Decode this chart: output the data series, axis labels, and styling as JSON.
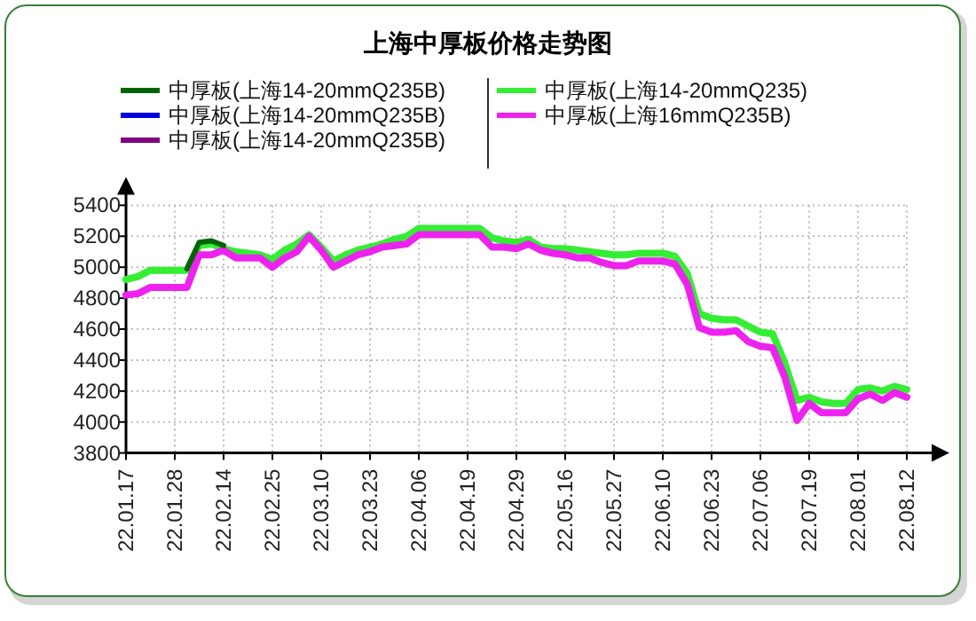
{
  "chart_data": {
    "type": "line",
    "title": "上海中厚板价格走势图",
    "categories": [
      "22.01.17",
      null,
      null,
      null,
      "22.01.28",
      null,
      null,
      null,
      "22.02.14",
      null,
      null,
      null,
      "22.02.25",
      null,
      null,
      null,
      "22.03.10",
      null,
      null,
      null,
      "22.03.23",
      null,
      null,
      null,
      "22.04.06",
      null,
      null,
      null,
      "22.04.19",
      null,
      null,
      null,
      "22.04.29",
      null,
      null,
      null,
      "22.05.16",
      null,
      null,
      null,
      "22.05.27",
      null,
      null,
      null,
      "22.06.10",
      null,
      null,
      null,
      "22.06.23",
      null,
      null,
      null,
      "22.07.06",
      null,
      null,
      null,
      "22.07.19",
      null,
      null,
      null,
      "22.08.01",
      null,
      null,
      null,
      "22.08.12"
    ],
    "series": [
      {
        "name": "中厚板(上海14-20mmQ235B)",
        "color": "#006400",
        "values": [
          null,
          null,
          null,
          null,
          null,
          4990,
          5160,
          5170,
          5140,
          null,
          null,
          null,
          null,
          null,
          null,
          null,
          null,
          null,
          null,
          null,
          null,
          null,
          null,
          null,
          null,
          null,
          null,
          null,
          null,
          null,
          null,
          null,
          null,
          null,
          null,
          null,
          null,
          null,
          null,
          null,
          null,
          null,
          null,
          null,
          null,
          null,
          null,
          null,
          null,
          null,
          null,
          null,
          null,
          null,
          null,
          null,
          null,
          null,
          null,
          null,
          null,
          null,
          null,
          null,
          null
        ]
      },
      {
        "name": "中厚板(上海14-20mmQ235B)",
        "color": "#0000dd",
        "values": [
          null,
          null,
          null,
          null,
          null,
          null,
          null,
          null,
          null,
          null,
          null,
          null,
          null,
          null,
          null,
          null,
          null,
          null,
          null,
          null,
          null,
          null,
          null,
          null,
          null,
          null,
          null,
          null,
          null,
          null,
          null,
          null,
          null,
          null,
          null,
          null,
          null,
          null,
          null,
          null,
          null,
          null,
          null,
          null,
          null,
          null,
          null,
          null,
          null,
          null,
          null,
          null,
          null,
          null,
          null,
          null,
          null,
          null,
          null,
          null,
          null,
          null,
          null,
          null,
          null
        ]
      },
      {
        "name": "中厚板(上海14-20mmQ235B)",
        "color": "#800080",
        "values": [
          null,
          null,
          null,
          null,
          null,
          null,
          null,
          null,
          null,
          null,
          null,
          null,
          null,
          null,
          null,
          null,
          null,
          null,
          null,
          null,
          null,
          null,
          null,
          null,
          null,
          null,
          null,
          null,
          null,
          null,
          null,
          null,
          null,
          null,
          null,
          null,
          null,
          null,
          null,
          null,
          null,
          null,
          null,
          null,
          null,
          null,
          null,
          null,
          null,
          null,
          null,
          null,
          null,
          null,
          null,
          null,
          null,
          null,
          null,
          null,
          null,
          null,
          null,
          null,
          null
        ]
      },
      {
        "name": "中厚板(上海14-20mmQ235)",
        "color": "#33ee33",
        "values": [
          4920,
          4940,
          4980,
          4980,
          4980,
          4980,
          5140,
          5150,
          5120,
          5100,
          5090,
          5080,
          5050,
          5110,
          5150,
          5210,
          5130,
          5040,
          5080,
          5110,
          5130,
          5150,
          5180,
          5200,
          5250,
          5250,
          5250,
          5250,
          5250,
          5250,
          5190,
          5170,
          5160,
          5180,
          5130,
          5120,
          5120,
          5110,
          5100,
          5090,
          5080,
          5080,
          5090,
          5090,
          5090,
          5070,
          4960,
          4700,
          4670,
          4660,
          4660,
          4620,
          4580,
          4570,
          4380,
          4140,
          4160,
          4130,
          4120,
          4120,
          4210,
          4220,
          4200,
          4230,
          4210
        ]
      },
      {
        "name": "中厚板(上海16mmQ235B)",
        "color": "#ee22ee",
        "values": [
          4820,
          4830,
          4870,
          4870,
          4870,
          4870,
          5080,
          5080,
          5110,
          5060,
          5060,
          5060,
          5000,
          5060,
          5100,
          5200,
          5110,
          5000,
          5040,
          5080,
          5100,
          5130,
          5140,
          5150,
          5210,
          5210,
          5210,
          5210,
          5210,
          5210,
          5130,
          5130,
          5120,
          5150,
          5110,
          5090,
          5080,
          5060,
          5060,
          5030,
          5010,
          5010,
          5040,
          5040,
          5040,
          5020,
          4890,
          4610,
          4580,
          4580,
          4590,
          4520,
          4490,
          4480,
          4290,
          4010,
          4120,
          4060,
          4060,
          4060,
          4150,
          4180,
          4140,
          4190,
          4160
        ]
      }
    ],
    "ylim": [
      3800,
      5400
    ],
    "yticks": [
      3800,
      4000,
      4200,
      4400,
      4600,
      4800,
      5000,
      5200,
      5400
    ],
    "grid": true,
    "legend": "top",
    "marker": "none",
    "line_style": "solid"
  }
}
